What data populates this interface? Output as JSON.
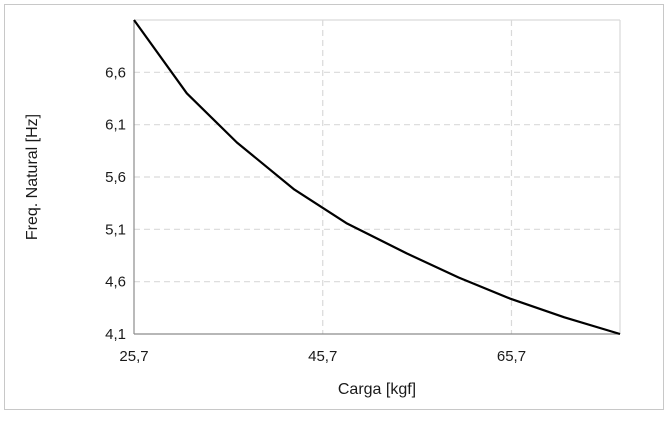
{
  "chart_data": {
    "type": "line",
    "xlabel": "Carga [kgf]",
    "ylabel": "Freq. Natural [Hz]",
    "xlim": [
      25.7,
      77.2
    ],
    "ylim": [
      4.1,
      7.1
    ],
    "x_ticks": [
      "25,7",
      "45,7",
      "65,7"
    ],
    "x_tick_values": [
      25.7,
      45.7,
      65.7
    ],
    "y_ticks": [
      "4,1",
      "4,6",
      "5,1",
      "5,6",
      "6,1",
      "6,6"
    ],
    "y_tick_values": [
      4.1,
      4.6,
      5.1,
      5.6,
      6.1,
      6.6
    ],
    "grid": true,
    "series": [
      {
        "color": "#000000",
        "x": [
          25.7,
          31.3,
          36.6,
          42.7,
          48.2,
          54.6,
          60.1,
          65.5,
          71.3,
          77.2
        ],
        "y": [
          7.1,
          6.4,
          5.93,
          5.48,
          5.16,
          4.87,
          4.64,
          4.44,
          4.26,
          4.1
        ]
      }
    ]
  }
}
